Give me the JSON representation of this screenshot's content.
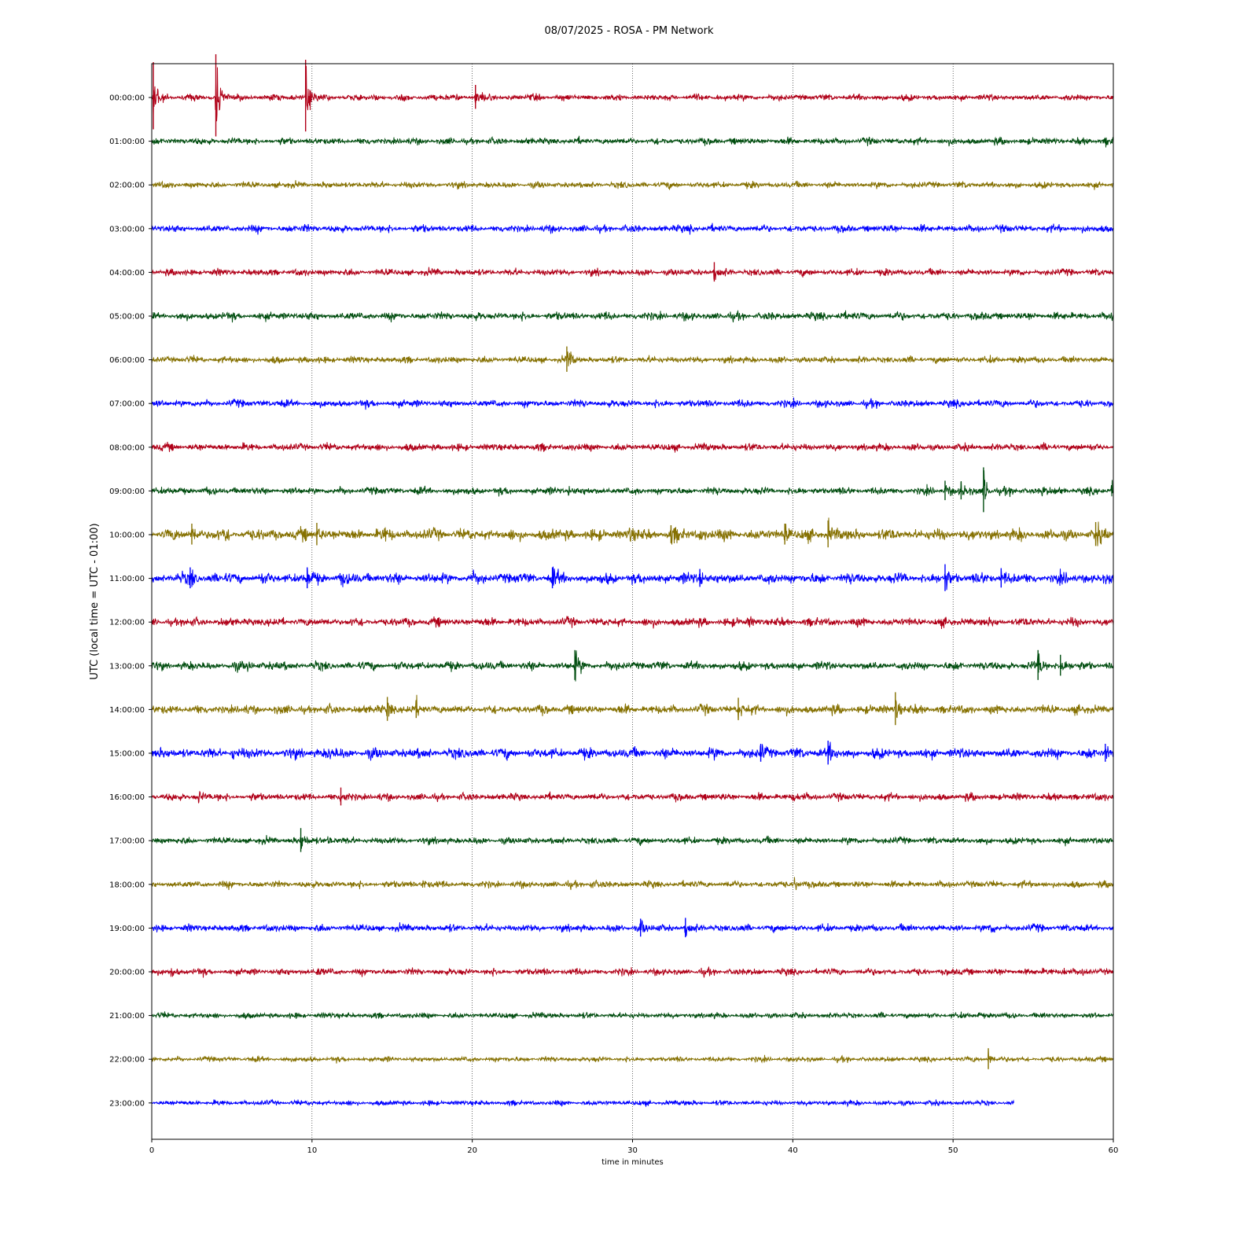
{
  "chart_data": {
    "type": "line",
    "title": "08/07/2025 - ROSA - PM Network",
    "xlabel": "time in minutes",
    "ylabel": "UTC (local time = UTC - 01:00)",
    "xlim": [
      0,
      60
    ],
    "x_ticks": [
      0,
      10,
      20,
      30,
      40,
      50,
      60
    ],
    "grid": "vertical dotted lines at 10-minute ticks",
    "color_cycle": [
      "#b00018",
      "#004d0f",
      "#857000",
      "#0000ff"
    ],
    "series": [
      {
        "name": "00:00:00",
        "color": "#b00018",
        "end_minute": 60,
        "noise": 2.2,
        "events": [
          {
            "t": 0.1,
            "amp": 45
          },
          {
            "t": 4.0,
            "amp": 55
          },
          {
            "t": 9.6,
            "amp": 48
          },
          {
            "t": 20.2,
            "amp": 16
          }
        ]
      },
      {
        "name": "01:00:00",
        "color": "#004d0f",
        "end_minute": 60,
        "noise": 2.4,
        "events": [
          {
            "t": 59.5,
            "amp": 6
          }
        ]
      },
      {
        "name": "02:00:00",
        "color": "#857000",
        "end_minute": 60,
        "noise": 2.2,
        "events": []
      },
      {
        "name": "03:00:00",
        "color": "#0000ff",
        "end_minute": 60,
        "noise": 2.6,
        "events": [
          {
            "t": 9.5,
            "amp": 5
          },
          {
            "t": 33.5,
            "amp": 5
          },
          {
            "t": 46.0,
            "amp": 5
          }
        ]
      },
      {
        "name": "04:00:00",
        "color": "#b00018",
        "end_minute": 60,
        "noise": 2.4,
        "events": [
          {
            "t": 35.1,
            "amp": 13
          }
        ]
      },
      {
        "name": "05:00:00",
        "color": "#004d0f",
        "end_minute": 60,
        "noise": 2.8,
        "events": [
          {
            "t": 42.8,
            "amp": 6
          }
        ]
      },
      {
        "name": "06:00:00",
        "color": "#857000",
        "end_minute": 60,
        "noise": 2.4,
        "events": [
          {
            "t": 25.9,
            "amp": 17
          }
        ]
      },
      {
        "name": "07:00:00",
        "color": "#0000ff",
        "end_minute": 60,
        "noise": 2.6,
        "events": [
          {
            "t": 50.9,
            "amp": 6
          }
        ]
      },
      {
        "name": "08:00:00",
        "color": "#b00018",
        "end_minute": 60,
        "noise": 2.6,
        "events": []
      },
      {
        "name": "09:00:00",
        "color": "#004d0f",
        "end_minute": 60,
        "noise": 2.6,
        "events": [
          {
            "t": 26.0,
            "amp": 7
          },
          {
            "t": 49.5,
            "amp": 13
          },
          {
            "t": 50.5,
            "amp": 12
          },
          {
            "t": 51.9,
            "amp": 30
          },
          {
            "t": 55.5,
            "amp": 8
          },
          {
            "t": 59.9,
            "amp": 10
          }
        ]
      },
      {
        "name": "10:00:00",
        "color": "#857000",
        "end_minute": 60,
        "noise": 4.0,
        "events": [
          {
            "t": 2.5,
            "amp": 14
          },
          {
            "t": 4.5,
            "amp": 11
          },
          {
            "t": 10.3,
            "amp": 15
          },
          {
            "t": 14.4,
            "amp": 9
          },
          {
            "t": 29.8,
            "amp": 10
          },
          {
            "t": 32.4,
            "amp": 12
          },
          {
            "t": 34.2,
            "amp": 9
          },
          {
            "t": 39.5,
            "amp": 14
          },
          {
            "t": 42.2,
            "amp": 18
          },
          {
            "t": 58.9,
            "amp": 16
          }
        ]
      },
      {
        "name": "11:00:00",
        "color": "#0000ff",
        "end_minute": 60,
        "noise": 3.8,
        "events": [
          {
            "t": 2.4,
            "amp": 14
          },
          {
            "t": 9.7,
            "amp": 14
          },
          {
            "t": 11.8,
            "amp": 11
          },
          {
            "t": 19.8,
            "amp": 10
          },
          {
            "t": 25.0,
            "amp": 14
          },
          {
            "t": 34.2,
            "amp": 12
          },
          {
            "t": 49.5,
            "amp": 18
          },
          {
            "t": 53.0,
            "amp": 13
          }
        ]
      },
      {
        "name": "12:00:00",
        "color": "#b00018",
        "end_minute": 60,
        "noise": 3.0,
        "events": [
          {
            "t": 37.2,
            "amp": 8
          }
        ]
      },
      {
        "name": "13:00:00",
        "color": "#004d0f",
        "end_minute": 60,
        "noise": 3.0,
        "events": [
          {
            "t": 6.0,
            "amp": 8
          },
          {
            "t": 26.4,
            "amp": 20
          },
          {
            "t": 55.3,
            "amp": 20
          },
          {
            "t": 56.7,
            "amp": 14
          }
        ]
      },
      {
        "name": "14:00:00",
        "color": "#857000",
        "end_minute": 60,
        "noise": 3.2,
        "events": [
          {
            "t": 14.7,
            "amp": 16
          },
          {
            "t": 16.5,
            "amp": 12
          },
          {
            "t": 36.6,
            "amp": 15
          },
          {
            "t": 46.4,
            "amp": 22
          }
        ]
      },
      {
        "name": "15:00:00",
        "color": "#0000ff",
        "end_minute": 60,
        "noise": 3.6,
        "events": [
          {
            "t": 5.0,
            "amp": 8
          },
          {
            "t": 11.0,
            "amp": 9
          },
          {
            "t": 38.0,
            "amp": 12
          },
          {
            "t": 42.2,
            "amp": 16
          },
          {
            "t": 59.5,
            "amp": 12
          }
        ]
      },
      {
        "name": "16:00:00",
        "color": "#b00018",
        "end_minute": 60,
        "noise": 2.6,
        "events": [
          {
            "t": 2.9,
            "amp": 9
          },
          {
            "t": 11.8,
            "amp": 12
          },
          {
            "t": 40.0,
            "amp": 6
          }
        ]
      },
      {
        "name": "17:00:00",
        "color": "#004d0f",
        "end_minute": 60,
        "noise": 2.4,
        "events": [
          {
            "t": 9.3,
            "amp": 16
          },
          {
            "t": 11.0,
            "amp": 8
          }
        ]
      },
      {
        "name": "18:00:00",
        "color": "#857000",
        "end_minute": 60,
        "noise": 2.4,
        "events": [
          {
            "t": 16.9,
            "amp": 10
          },
          {
            "t": 27.3,
            "amp": 8
          },
          {
            "t": 40.1,
            "amp": 10
          }
        ]
      },
      {
        "name": "19:00:00",
        "color": "#0000ff",
        "end_minute": 60,
        "noise": 2.6,
        "events": [
          {
            "t": 30.5,
            "amp": 12
          },
          {
            "t": 33.3,
            "amp": 13
          },
          {
            "t": 52.3,
            "amp": 8
          }
        ]
      },
      {
        "name": "20:00:00",
        "color": "#b00018",
        "end_minute": 60,
        "noise": 2.4,
        "events": [
          {
            "t": 1.2,
            "amp": 6
          },
          {
            "t": 10.3,
            "amp": 7
          },
          {
            "t": 56.8,
            "amp": 9
          }
        ]
      },
      {
        "name": "21:00:00",
        "color": "#004d0f",
        "end_minute": 60,
        "noise": 2.0,
        "events": [
          {
            "t": 51.5,
            "amp": 6
          }
        ]
      },
      {
        "name": "22:00:00",
        "color": "#857000",
        "end_minute": 60,
        "noise": 1.8,
        "events": [
          {
            "t": 52.2,
            "amp": 14
          }
        ]
      },
      {
        "name": "23:00:00",
        "color": "#0000ff",
        "end_minute": 53.8,
        "noise": 1.8,
        "events": []
      }
    ]
  }
}
